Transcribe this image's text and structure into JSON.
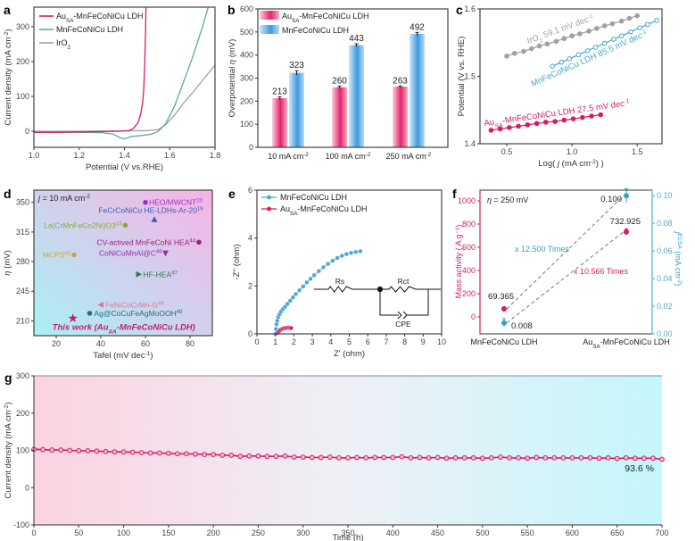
{
  "colors": {
    "au": "#d81b66",
    "mn": "#4aa8d8",
    "mn_teal": "#5aaaa8",
    "iro2": "#a0a0a0",
    "axis": "#333333"
  },
  "chart_data": [
    {
      "panel_label": "a",
      "type": "line",
      "xlabel": "Potential (V vs.RHE)",
      "ylabel": [
        "Current density (mA cm",
        {
          "sup": "-2"
        },
        ")"
      ],
      "xlim": [
        1.0,
        1.8
      ],
      "ylim": [
        -46,
        356
      ],
      "xticks": [
        "1.0",
        "1.2",
        "1.4",
        "1.6",
        "1.8"
      ],
      "yticks": [
        "0",
        "100",
        "200",
        "300"
      ],
      "legend_position": "top-left",
      "series": [
        {
          "name": [
            "Au",
            {
              "sub": "SA"
            },
            "-MnFeCoNiCu LDH"
          ],
          "color": "#d81b66",
          "x": [
            1.0,
            1.1,
            1.2,
            1.3,
            1.38,
            1.42,
            1.44,
            1.46,
            1.47,
            1.48,
            1.485,
            1.49,
            1.493,
            1.495
          ],
          "y": [
            -3,
            -3,
            -2,
            -1,
            0,
            2,
            8,
            25,
            45,
            80,
            120,
            200,
            280,
            356
          ]
        },
        {
          "name": [
            "MnFeCoNiCu LDH"
          ],
          "color": "#5aaaa8",
          "x": [
            1.0,
            1.2,
            1.3,
            1.35,
            1.38,
            1.4,
            1.43,
            1.48,
            1.52,
            1.55,
            1.58,
            1.62,
            1.66,
            1.7,
            1.74,
            1.77
          ],
          "y": [
            -3,
            -3,
            -4,
            -8,
            -18,
            -22,
            -15,
            -12,
            -8,
            0,
            20,
            70,
            140,
            210,
            290,
            356
          ]
        },
        {
          "name": [
            "IrO",
            {
              "sub": "2"
            }
          ],
          "color": "#a0a0a0",
          "x": [
            1.0,
            1.2,
            1.4,
            1.5,
            1.55,
            1.58,
            1.62,
            1.66,
            1.7,
            1.75,
            1.8
          ],
          "y": [
            0,
            0,
            1,
            2,
            5,
            18,
            45,
            80,
            110,
            150,
            190
          ]
        }
      ]
    },
    {
      "panel_label": "b",
      "type": "bar",
      "xlabel": "",
      "ylabel": [
        "Overpotential ",
        {
          "italic": "η"
        },
        " (mV)"
      ],
      "ylim": [
        0,
        600
      ],
      "yticks": [
        "0",
        "100",
        "200",
        "300",
        "400",
        "500",
        "600"
      ],
      "categories": [
        [
          "10 mA cm",
          {
            "sup": "-2"
          }
        ],
        [
          "100 mA cm",
          {
            "sup": "-2"
          }
        ],
        [
          "250 mA cm",
          {
            "sup": "-2"
          }
        ]
      ],
      "legend_position": "top-left",
      "series": [
        {
          "name": [
            "Au",
            {
              "sub": "SA"
            },
            "-MnFeCoNiCu LDH"
          ],
          "color": "#e3246b",
          "values": [
            213,
            260,
            263
          ],
          "errors": [
            6,
            5,
            3
          ],
          "labels": [
            "213",
            "260",
            "263"
          ]
        },
        {
          "name": [
            "MnFeCoNiCu LDH"
          ],
          "color": "#3d9ae0",
          "values": [
            323,
            443,
            492
          ],
          "errors": [
            9,
            6,
            6
          ],
          "labels": [
            "323",
            "443",
            "492"
          ]
        }
      ]
    },
    {
      "panel_label": "c",
      "type": "line",
      "xlabel": [
        "Log( ",
        {
          "italic": "j"
        },
        " (mA cm",
        {
          "sup": "-2"
        },
        ") )"
      ],
      "ylabel": "Potential (V vs. RHE)",
      "xlim": [
        0.295,
        1.69
      ],
      "ylim": [
        1.4,
        1.6
      ],
      "xticks": [
        "0.5",
        "1.0",
        "1.5"
      ],
      "yticks": [
        "1.4",
        "1.5",
        "1.6"
      ],
      "series": [
        {
          "name": [
            "IrO",
            {
              "sub": "2"
            },
            "  59.1 mV dec",
            {
              "sup": "-1"
            }
          ],
          "color": "#a0a0a0",
          "marker": "filled-circle",
          "x": [
            0.5,
            0.56,
            0.63,
            0.69,
            0.75,
            0.81,
            0.88,
            0.94,
            1.0,
            1.06,
            1.13,
            1.19,
            1.25,
            1.31,
            1.38,
            1.44,
            1.5
          ],
          "y": [
            1.53,
            1.534,
            1.537,
            1.541,
            1.545,
            1.548,
            1.552,
            1.556,
            1.56,
            1.563,
            1.567,
            1.571,
            1.575,
            1.578,
            1.582,
            1.586,
            1.59
          ]
        },
        {
          "name": [
            "MnFeCoNiCu LDH  85.5 mV dec",
            {
              "sup": "-1"
            }
          ],
          "color": "#3fa8c8",
          "marker": "open-circle",
          "x": [
            0.85,
            0.92,
            0.98,
            1.05,
            1.12,
            1.18,
            1.25,
            1.32,
            1.38,
            1.45,
            1.52,
            1.58,
            1.65
          ],
          "y": [
            1.515,
            1.521,
            1.526,
            1.532,
            1.538,
            1.543,
            1.549,
            1.555,
            1.56,
            1.566,
            1.572,
            1.577,
            1.583
          ]
        },
        {
          "name": [
            "Au",
            {
              "sub": "SA"
            },
            "-MnFeCoNiCu LDH  27.5 mV dec",
            {
              "sup": "-1"
            }
          ],
          "color": "#d81b66",
          "marker": "filled-circle",
          "x": [
            0.38,
            0.45,
            0.52,
            0.59,
            0.66,
            0.73,
            0.8,
            0.87,
            0.94,
            1.01,
            1.08,
            1.15,
            1.22
          ],
          "y": [
            1.42,
            1.422,
            1.424,
            1.426,
            1.428,
            1.43,
            1.432,
            1.433,
            1.435,
            1.437,
            1.439,
            1.441,
            1.443
          ]
        }
      ]
    },
    {
      "panel_label": "d",
      "type": "scatter",
      "xlabel": [
        "Tafel (mV dec",
        {
          "sup": "-1"
        },
        ")"
      ],
      "ylabel": [
        {
          "italic": "η"
        },
        " (mV)"
      ],
      "xlim": [
        10,
        90
      ],
      "ylim": [
        192.5,
        364.5
      ],
      "xticks": [
        "20",
        "40",
        "60",
        "80"
      ],
      "yticks": [
        "210",
        "245",
        "280",
        "315",
        "350"
      ],
      "annotation": [
        {
          "italic": "j"
        },
        " = 10 mA cm",
        {
          "sup": "-2"
        }
      ],
      "background": [
        "#a9f0f3",
        "#f8b3e6"
      ],
      "points": [
        {
          "label": [
            "HEO/MWCNT",
            {
              "sup": "20"
            }
          ],
          "x": 60,
          "y": 350,
          "marker": "circle",
          "color": "#9b30c8"
        },
        {
          "label": [
            "FeCrCoNiCu HE-LDHs-Ar-20",
            {
              "sup": "19"
            }
          ],
          "x": 64,
          "y": 330,
          "marker": "triangle-up",
          "color": "#3a5fb0"
        },
        {
          "label": [
            "La(CrMnFeCo2Ni)O3",
            {
              "sup": "43"
            }
          ],
          "x": 51,
          "y": 323,
          "marker": "circle",
          "color": "#8aa840"
        },
        {
          "label": [
            "CV-actived MnFeCoNi HEA",
            {
              "sup": "44"
            }
          ],
          "x": 84,
          "y": 303,
          "marker": "circle",
          "color": "#a02080"
        },
        {
          "label": [
            "CoNiCuMnAl@C",
            {
              "sup": "46"
            }
          ],
          "x": 69,
          "y": 290,
          "marker": "triangle-down",
          "color": "#9030a0"
        },
        {
          "label": [
            "MCPS",
            {
              "sup": "45"
            }
          ],
          "x": 28,
          "y": 288,
          "marker": "circle",
          "color": "#d4a040"
        },
        {
          "label": [
            "HF-HEA",
            {
              "sup": "47"
            }
          ],
          "x": 57,
          "y": 265,
          "marker": "triangle-right",
          "color": "#2a7a50"
        },
        {
          "label": [
            "FeNiCoCrMn-G",
            {
              "sup": "48"
            }
          ],
          "x": 40,
          "y": 229,
          "marker": "triangle-left",
          "color": "#e070a0"
        },
        {
          "label": [
            "Ag@CoCuFeAgMoOOH",
            {
              "sup": "49"
            }
          ],
          "x": 35,
          "y": 219,
          "marker": "circle",
          "color": "#207080"
        },
        {
          "label": [
            "This work (Au",
            {
              "sub": "SA"
            },
            "-MnFeCoNiCu LDH)"
          ],
          "x": 27.5,
          "y": 213,
          "marker": "star",
          "color": "#c0206a"
        }
      ]
    },
    {
      "panel_label": "e",
      "type": "scatter",
      "xlabel": "Z' (ohm)",
      "ylabel": "-Z'' (ohm)",
      "xlim": [
        0,
        10
      ],
      "ylim": [
        0,
        6
      ],
      "xticks": [
        "0",
        "1",
        "2",
        "3",
        "4",
        "5",
        "6",
        "7",
        "8",
        "9",
        "10"
      ],
      "yticks": [
        "0",
        "2",
        "4",
        "6"
      ],
      "legend_position": "top-left",
      "circuit_labels": {
        "rs": "Rs",
        "rct": "Rct",
        "cpe": "CPE"
      },
      "series": [
        {
          "name": [
            "MnFeCoNiCu LDH"
          ],
          "color": "#4aa8d8",
          "x": [
            1.0,
            1.03,
            1.06,
            1.1,
            1.15,
            1.22,
            1.3,
            1.4,
            1.52,
            1.65,
            1.8,
            1.95,
            2.1,
            2.3,
            2.5,
            2.7,
            2.9,
            3.1,
            3.35,
            3.6,
            3.85,
            4.1,
            4.35,
            4.6,
            4.85,
            5.1,
            5.35,
            5.6
          ],
          "y": [
            0.0,
            0.2,
            0.4,
            0.55,
            0.7,
            0.82,
            0.93,
            1.03,
            1.13,
            1.25,
            1.38,
            1.52,
            1.66,
            1.82,
            1.98,
            2.15,
            2.3,
            2.45,
            2.62,
            2.78,
            2.92,
            3.05,
            3.17,
            3.26,
            3.33,
            3.38,
            3.42,
            3.45
          ]
        },
        {
          "name": [
            "Au",
            {
              "sub": "SA"
            },
            "-MnFeCoNiCu LDH"
          ],
          "color": "#d81b66",
          "x": [
            1.12,
            1.2,
            1.28,
            1.38,
            1.48,
            1.58,
            1.68,
            1.78,
            1.85
          ],
          "y": [
            0.04,
            0.11,
            0.17,
            0.21,
            0.24,
            0.25,
            0.26,
            0.25,
            0.24
          ]
        }
      ]
    },
    {
      "panel_label": "f",
      "type": "scatter",
      "categories": [
        "MnFeCoNiCu LDH",
        [
          "Au",
          {
            "sub": "SA"
          },
          "-MnFeCoNiCu LDH"
        ]
      ],
      "ylabel_left": "Mass activity ( A g⁻¹)",
      "ylabel_right": [
        {
          "italic": "j"
        },
        {
          "sup": "ECSA"
        },
        " (mA cm",
        {
          "sup": "-2"
        },
        ")"
      ],
      "ylim_left": [
        -146,
        1092
      ],
      "ylim_right": [
        0,
        0.104
      ],
      "yticks_left": [
        "0",
        "200",
        "400",
        "600",
        "800",
        "1000"
      ],
      "yticks_right": [
        "0.00",
        "0.02",
        "0.04",
        "0.06",
        "0.08",
        "0.10"
      ],
      "annotation": [
        {
          "italic": "η"
        },
        " = 250 mV"
      ],
      "mass_activity": {
        "values": [
          69.365,
          732.925
        ],
        "errors": [
          18,
          25
        ],
        "labels": [
          "69.365",
          "732.925"
        ],
        "color": "#d81b66"
      },
      "j_ecsa": {
        "values": [
          0.008,
          0.1
        ],
        "errors": [
          0.003,
          0.005
        ],
        "labels": [
          "0.008",
          "0.100"
        ],
        "color": "#3a9fc8"
      },
      "ratio_labels": {
        "ecsa": "x 12.500 Times",
        "mass": "x 10.566 Times"
      }
    },
    {
      "panel_label": "g",
      "type": "line",
      "xlabel": "Time (h)",
      "ylabel": [
        "Current density  (mA cm",
        {
          "sup": "-2"
        },
        ")"
      ],
      "xlim": [
        0,
        700
      ],
      "ylim": [
        -100,
        300
      ],
      "xticks": [
        "0",
        "50",
        "100",
        "150",
        "200",
        "250",
        "300",
        "350",
        "400",
        "450",
        "500",
        "550",
        "600",
        "650",
        "700"
      ],
      "yticks": [
        "-100",
        "0",
        "100",
        "200",
        "300"
      ],
      "background": [
        "#fbd3e2",
        "#c4f6fb"
      ],
      "annotation": "93.6 %",
      "series": [
        {
          "color": "#d81b66",
          "x": [
            0,
            10,
            20,
            30,
            40,
            50,
            60,
            70,
            80,
            90,
            100,
            110,
            120,
            130,
            140,
            150,
            160,
            170,
            180,
            190,
            200,
            210,
            220,
            230,
            240,
            250,
            260,
            270,
            280,
            290,
            300,
            310,
            320,
            330,
            340,
            350,
            360,
            370,
            380,
            390,
            400,
            410,
            420,
            430,
            440,
            450,
            460,
            470,
            480,
            490,
            500,
            510,
            520,
            530,
            540,
            550,
            560,
            570,
            580,
            590,
            600,
            610,
            620,
            630,
            640,
            650,
            660,
            670,
            680,
            690,
            700
          ],
          "y": [
            103,
            102,
            101,
            101,
            100,
            99,
            99,
            98,
            97,
            96,
            96,
            95,
            94,
            93,
            93,
            92,
            91,
            91,
            90,
            89,
            89,
            87,
            87,
            84,
            85,
            85,
            84,
            84,
            85,
            82,
            82,
            81,
            81,
            82,
            80,
            80,
            81,
            80,
            81,
            81,
            81,
            83,
            80,
            81,
            80,
            81,
            79,
            80,
            80,
            80,
            79,
            80,
            82,
            80,
            80,
            79,
            81,
            80,
            80,
            80,
            80,
            80,
            80,
            79,
            80,
            78,
            80,
            79,
            79,
            79,
            76
          ]
        }
      ]
    }
  ]
}
